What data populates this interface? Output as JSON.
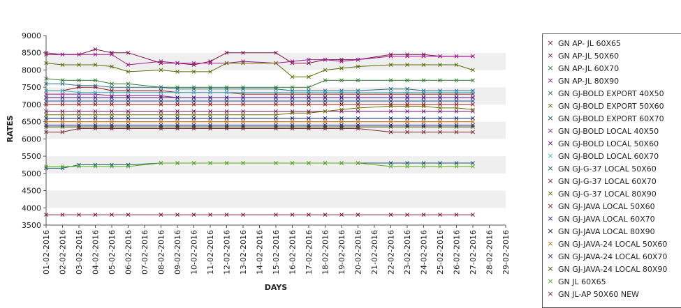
{
  "chart_data": {
    "type": "line",
    "xlabel": "DAYS",
    "ylabel": "RATES",
    "ylim": [
      3500,
      9000
    ],
    "yticks": [
      3500,
      4000,
      4500,
      5000,
      5500,
      6000,
      6500,
      7000,
      7500,
      8000,
      8500,
      9000
    ],
    "categories": [
      "01-02-2016",
      "02-02-2016",
      "03-02-2016",
      "04-02-2016",
      "05-02-2016",
      "06-02-2016",
      "07-02-2016",
      "08-02-2016",
      "09-02-2016",
      "10-02-2016",
      "11-02-2016",
      "12-02-2016",
      "13-02-2016",
      "14-02-2016",
      "15-02-2016",
      "16-02-2016",
      "17-02-2016",
      "18-02-2016",
      "19-02-2016",
      "20-02-2016",
      "21-02-2016",
      "22-02-2016",
      "23-02-2016",
      "24-02-2016",
      "25-02-2016",
      "26-02-2016",
      "27-02-2016",
      "28-02-2016",
      "29-02-2016"
    ],
    "grid": "alternating horizontal bands",
    "legend": "right",
    "series": [
      {
        "name": "GN AP- JL 60X65",
        "color": "#8b1a1a",
        "values": [
          7400,
          7400,
          7500,
          7500,
          7400,
          7400,
          null,
          7400,
          7350,
          7350,
          7350,
          7350,
          7300,
          null,
          7300,
          7300,
          7300,
          7300,
          7300,
          7300,
          null,
          7300,
          7300,
          7300,
          7300,
          7300,
          7300,
          null,
          null
        ]
      },
      {
        "name": "GN AP-JL 50X60",
        "color": "#7a0f4a",
        "values": [
          8450,
          8450,
          8450,
          8600,
          8500,
          8500,
          null,
          8200,
          8200,
          8150,
          8250,
          8500,
          8500,
          null,
          8500,
          8200,
          8200,
          8300,
          8300,
          8300,
          null,
          8450,
          8450,
          8450,
          8400,
          8400,
          8400,
          null,
          null
        ]
      },
      {
        "name": "GN AP-JL 60X70",
        "color": "#2e7d2e",
        "values": [
          7750,
          7700,
          7700,
          7700,
          7600,
          7600,
          null,
          7500,
          7500,
          7500,
          7500,
          7500,
          7500,
          null,
          7500,
          7500,
          7500,
          7700,
          7700,
          7700,
          null,
          7700,
          7700,
          7700,
          7700,
          7700,
          7700,
          null,
          null
        ]
      },
      {
        "name": "GN AP-JL 80X90",
        "color": "#a0168c",
        "values": [
          8500,
          8450,
          8450,
          8450,
          8450,
          8150,
          null,
          8250,
          8200,
          8200,
          8200,
          8200,
          8250,
          null,
          8200,
          8250,
          8300,
          8300,
          8250,
          8300,
          null,
          8400,
          8400,
          8400,
          8400,
          8400,
          8400,
          null,
          null
        ]
      },
      {
        "name": "GN GJ-BOLD EXPORT 40X50",
        "color": "#2b6f8a",
        "values": [
          7600,
          7600,
          7550,
          7550,
          7500,
          7500,
          null,
          7500,
          7450,
          7450,
          7450,
          7450,
          7450,
          null,
          7450,
          7400,
          7400,
          7400,
          7400,
          7400,
          null,
          7450,
          7450,
          7400,
          7400,
          7400,
          7400,
          null,
          null
        ]
      },
      {
        "name": "GN GJ-BOLD EXPORT 50X60",
        "color": "#5a6b00",
        "values": [
          8200,
          8150,
          8150,
          8150,
          8100,
          7950,
          null,
          8000,
          7950,
          7950,
          7950,
          8200,
          8200,
          null,
          8200,
          7800,
          7800,
          8000,
          8050,
          8100,
          null,
          8150,
          8150,
          8150,
          8150,
          8150,
          8000,
          null,
          null
        ]
      },
      {
        "name": "GN GJ-BOLD EXPORT 60X70",
        "color": "#1f4f8a",
        "values": [
          7100,
          7100,
          7100,
          7100,
          7100,
          7100,
          null,
          7100,
          7100,
          7100,
          7100,
          7100,
          7100,
          null,
          7100,
          7100,
          7100,
          7100,
          7100,
          7100,
          null,
          7100,
          7100,
          7100,
          7100,
          7100,
          7100,
          null,
          null
        ]
      },
      {
        "name": "GN GJ-BOLD LOCAL 40X50",
        "color": "#8a2b8a",
        "values": [
          7300,
          7300,
          7300,
          7300,
          7250,
          7250,
          null,
          7250,
          7200,
          7200,
          7200,
          7200,
          7200,
          null,
          7200,
          7200,
          7200,
          7200,
          7200,
          7200,
          null,
          7200,
          7200,
          7200,
          7200,
          7200,
          7200,
          null,
          null
        ]
      },
      {
        "name": "GN GJ-BOLD LOCAL 50X60",
        "color": "#6a0f6a",
        "values": [
          6800,
          6800,
          6800,
          6800,
          6800,
          6800,
          null,
          6800,
          6800,
          6800,
          6800,
          6800,
          6800,
          null,
          6800,
          6800,
          6800,
          6800,
          6800,
          6800,
          null,
          6800,
          6800,
          6800,
          6800,
          6800,
          6800,
          null,
          null
        ]
      },
      {
        "name": "GN GJ-BOLD LOCAL 60X70",
        "color": "#3fb8c8",
        "values": [
          7400,
          7400,
          7350,
          7350,
          7350,
          7350,
          null,
          7350,
          7350,
          7350,
          7350,
          7350,
          7350,
          null,
          7350,
          7350,
          7350,
          7350,
          7350,
          7350,
          null,
          7350,
          7350,
          7350,
          7350,
          7350,
          7350,
          null,
          null
        ]
      },
      {
        "name": "GN GJ-G-37 LOCAL 50X60",
        "color": "#0f5a6a",
        "values": [
          5150,
          5150,
          5250,
          5250,
          5250,
          5250,
          null,
          5300,
          5300,
          5300,
          5300,
          5300,
          5300,
          null,
          5300,
          5300,
          5300,
          5300,
          5300,
          5300,
          null,
          5300,
          5300,
          5300,
          5300,
          5300,
          5300,
          null,
          null
        ]
      },
      {
        "name": "GN GJ-G-37 LOCAL 60X70",
        "color": "#7a2a2a",
        "values": [
          6200,
          6200,
          6300,
          6300,
          6300,
          6300,
          null,
          6300,
          6300,
          6300,
          6300,
          6300,
          6300,
          null,
          6300,
          6300,
          6300,
          6300,
          6300,
          6300,
          null,
          6200,
          6200,
          6200,
          6200,
          6200,
          6200,
          null,
          null
        ]
      },
      {
        "name": "GN GJ-G-37 LOCAL 80X90",
        "color": "#6b6b00",
        "values": [
          6700,
          6700,
          6700,
          6700,
          6700,
          6700,
          null,
          6700,
          6700,
          6700,
          6700,
          6700,
          6700,
          null,
          6700,
          6750,
          6750,
          6800,
          6850,
          6900,
          null,
          6950,
          6950,
          6950,
          6900,
          6900,
          6850,
          null,
          null
        ]
      },
      {
        "name": "GN GJ-JAVA LOCAL 50X60",
        "color": "#a01a1a",
        "values": [
          7000,
          7000,
          7000,
          7000,
          7000,
          7000,
          null,
          7000,
          7000,
          7000,
          7000,
          7000,
          7000,
          null,
          7000,
          7000,
          7000,
          7000,
          7000,
          7000,
          null,
          7000,
          7000,
          7000,
          7000,
          7000,
          7000,
          null,
          null
        ]
      },
      {
        "name": "GN GJ-JAVA LOCAL 60X70",
        "color": "#1a1aa0",
        "values": [
          6400,
          6400,
          6400,
          6400,
          6400,
          6400,
          null,
          6400,
          6400,
          6400,
          6400,
          6400,
          6400,
          null,
          6400,
          6400,
          6400,
          6400,
          6400,
          6400,
          null,
          6400,
          6400,
          6400,
          6400,
          6400,
          6400,
          null,
          null
        ]
      },
      {
        "name": "GN GJ-JAVA LOCAL 80X90",
        "color": "#0a1a6a",
        "values": [
          6600,
          6600,
          6600,
          6600,
          6600,
          6600,
          null,
          6600,
          6600,
          6600,
          6600,
          6600,
          6600,
          null,
          6600,
          6600,
          6600,
          6600,
          6600,
          6600,
          null,
          6600,
          6600,
          6600,
          6600,
          6600,
          6600,
          null,
          null
        ]
      },
      {
        "name": "GN GJ-JAVA-24 LOCAL 50X60",
        "color": "#c86a00",
        "values": [
          6500,
          6500,
          6500,
          6500,
          6500,
          6500,
          null,
          6500,
          6500,
          6500,
          6500,
          6500,
          6500,
          null,
          6500,
          6500,
          6500,
          6500,
          6500,
          6500,
          null,
          6500,
          6500,
          6500,
          6500,
          6500,
          6500,
          null,
          null
        ]
      },
      {
        "name": "GN GJ-JAVA-24 LOCAL 60X70",
        "color": "#4a1a8a",
        "values": [
          7200,
          7200,
          7200,
          7200,
          7200,
          7200,
          null,
          7200,
          7200,
          7200,
          7200,
          7200,
          7200,
          null,
          7200,
          7200,
          7200,
          7200,
          7200,
          7200,
          null,
          7200,
          7200,
          7200,
          7200,
          7200,
          7200,
          null,
          null
        ]
      },
      {
        "name": "GN GJ-JAVA-24 LOCAL 80X90",
        "color": "#3a4a00",
        "values": [
          6350,
          6350,
          6350,
          6350,
          6350,
          6350,
          null,
          6350,
          6350,
          6350,
          6350,
          6350,
          6350,
          null,
          6350,
          6350,
          6350,
          6350,
          6350,
          6350,
          null,
          6350,
          6350,
          6350,
          6350,
          6350,
          6350,
          null,
          null
        ]
      },
      {
        "name": "GN JL 60X65",
        "color": "#5fae1a",
        "values": [
          5200,
          5200,
          5200,
          5200,
          5200,
          5200,
          null,
          5300,
          5300,
          5300,
          5300,
          5300,
          5300,
          null,
          5300,
          5300,
          5300,
          5300,
          5300,
          5300,
          null,
          5200,
          5200,
          5200,
          5200,
          5200,
          5200,
          null,
          null
        ]
      },
      {
        "name": "GN JL-AP 50X60 NEW",
        "color": "#7a1a3a",
        "values": [
          3800,
          3800,
          3800,
          3800,
          3800,
          3800,
          null,
          3800,
          3800,
          3800,
          3800,
          3800,
          3800,
          null,
          3800,
          3800,
          3800,
          3800,
          3800,
          3800,
          null,
          3800,
          3800,
          3800,
          3800,
          3800,
          3800,
          null,
          null
        ]
      }
    ]
  }
}
